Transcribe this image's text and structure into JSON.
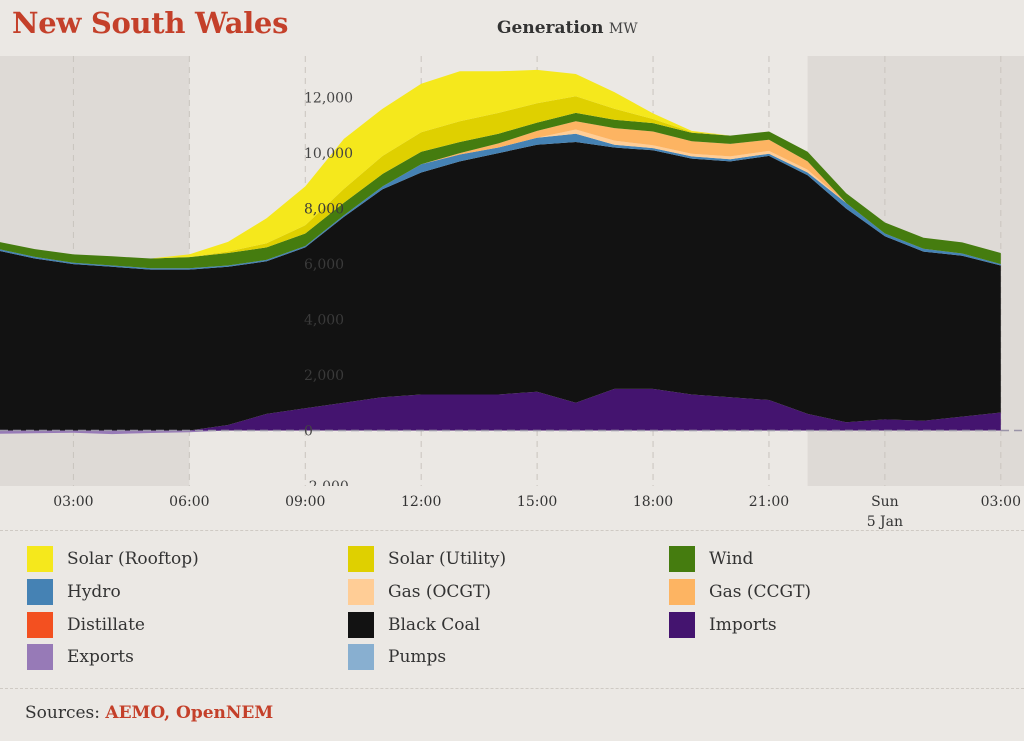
{
  "header": {
    "region": "New South Wales",
    "chart_title": "Generation",
    "unit": "MW"
  },
  "legend": [
    {
      "label": "Solar (Rooftop)",
      "color": "#f5e81c"
    },
    {
      "label": "Solar (Utility)",
      "color": "#dfd000"
    },
    {
      "label": "Wind",
      "color": "#457c0f"
    },
    {
      "label": "Hydro",
      "color": "#4582b4"
    },
    {
      "label": "Gas (OCGT)",
      "color": "#ffcd96"
    },
    {
      "label": "Gas (CCGT)",
      "color": "#fdb462"
    },
    {
      "label": "Distillate",
      "color": "#f35020"
    },
    {
      "label": "Black Coal",
      "color": "#121212"
    },
    {
      "label": "Imports",
      "color": "#44146f"
    },
    {
      "label": "Exports",
      "color": "#977ab7"
    },
    {
      "label": "Pumps",
      "color": "#88afd0"
    }
  ],
  "footer": {
    "sources_label": "Sources:",
    "sources_links": "AEMO, OpenNEM"
  },
  "chart_data": {
    "type": "area",
    "stacked": true,
    "ylim": [
      -2000,
      13500
    ],
    "yticks": [
      -2000,
      0,
      2000,
      4000,
      6000,
      8000,
      10000,
      12000
    ],
    "ytick_labels": [
      "-2,000",
      "0",
      "2,000",
      "4,000",
      "6,000",
      "8,000",
      "10,000",
      "12,000"
    ],
    "x_hours": [
      1,
      2,
      3,
      4,
      5,
      6,
      7,
      8,
      9,
      10,
      11,
      12,
      13,
      14,
      15,
      16,
      17,
      18,
      19,
      20,
      21,
      22,
      23,
      24,
      25,
      26,
      27
    ],
    "xlim_hours": [
      1.1,
      27.6
    ],
    "xticks": [
      {
        "hour": 3,
        "label": "03:00"
      },
      {
        "hour": 6,
        "label": "06:00"
      },
      {
        "hour": 9,
        "label": "09:00"
      },
      {
        "hour": 12,
        "label": "12:00"
      },
      {
        "hour": 15,
        "label": "15:00"
      },
      {
        "hour": 18,
        "label": "18:00"
      },
      {
        "hour": 21,
        "label": "21:00"
      },
      {
        "hour": 24,
        "label": "Sun",
        "sublabel": "5 Jan"
      },
      {
        "hour": 27,
        "label": "03:00"
      }
    ],
    "night_shading": [
      [
        1.1,
        6.0
      ],
      [
        22.0,
        27.6
      ]
    ],
    "series": [
      {
        "name": "Exports",
        "color": "#977ab7",
        "values": [
          -120,
          -100,
          -80,
          -130,
          -90,
          -60,
          0,
          0,
          0,
          0,
          0,
          0,
          0,
          0,
          0,
          0,
          0,
          0,
          0,
          0,
          0,
          0,
          0,
          0,
          0,
          0,
          0
        ]
      },
      {
        "name": "Imports",
        "color": "#44146f",
        "values": [
          0,
          0,
          0,
          0,
          0,
          0,
          200,
          600,
          800,
          1000,
          1200,
          1300,
          1300,
          1300,
          1400,
          1000,
          1500,
          1500,
          1300,
          1200,
          1100,
          600,
          300,
          400,
          350,
          500,
          650
        ]
      },
      {
        "name": "Black Coal",
        "color": "#121212",
        "values": [
          6500,
          6200,
          6000,
          5900,
          5800,
          5800,
          5700,
          5500,
          5800,
          6700,
          7500,
          8000,
          8400,
          8700,
          8900,
          9400,
          8700,
          8600,
          8500,
          8500,
          8800,
          8600,
          7700,
          6600,
          6100,
          5800,
          5300
        ]
      },
      {
        "name": "Hydro",
        "color": "#4582b4",
        "values": [
          60,
          60,
          50,
          50,
          50,
          50,
          50,
          50,
          50,
          60,
          100,
          300,
          250,
          200,
          250,
          300,
          100,
          80,
          80,
          80,
          80,
          100,
          200,
          100,
          100,
          80,
          50
        ]
      },
      {
        "name": "Gas (OCGT)",
        "color": "#ffcd96",
        "values": [
          0,
          0,
          0,
          0,
          0,
          0,
          0,
          0,
          0,
          0,
          0,
          0,
          0,
          0,
          0,
          150,
          150,
          100,
          100,
          100,
          100,
          100,
          0,
          0,
          0,
          0,
          0
        ]
      },
      {
        "name": "Gas (CCGT)",
        "color": "#fdb462",
        "values": [
          0,
          0,
          0,
          0,
          0,
          0,
          0,
          0,
          0,
          0,
          0,
          0,
          50,
          150,
          250,
          300,
          450,
          500,
          450,
          450,
          400,
          300,
          0,
          0,
          0,
          0,
          0
        ]
      },
      {
        "name": "Wind",
        "color": "#457c0f",
        "values": [
          260,
          280,
          300,
          330,
          350,
          400,
          450,
          450,
          450,
          450,
          450,
          450,
          400,
          350,
          300,
          300,
          300,
          300,
          300,
          300,
          300,
          350,
          350,
          400,
          400,
          400,
          400
        ]
      },
      {
        "name": "Solar (Utility)",
        "color": "#dfd000",
        "values": [
          0,
          0,
          0,
          0,
          0,
          0,
          50,
          150,
          300,
          500,
          650,
          700,
          750,
          750,
          700,
          600,
          400,
          150,
          30,
          0,
          0,
          0,
          0,
          0,
          0,
          0,
          0
        ]
      },
      {
        "name": "Solar (Rooftop)",
        "color": "#f5e81c",
        "values": [
          0,
          0,
          0,
          0,
          0,
          100,
          350,
          900,
          1400,
          1800,
          1700,
          1750,
          1800,
          1500,
          1200,
          800,
          600,
          200,
          40,
          0,
          0,
          0,
          0,
          0,
          0,
          0,
          0
        ]
      }
    ]
  }
}
